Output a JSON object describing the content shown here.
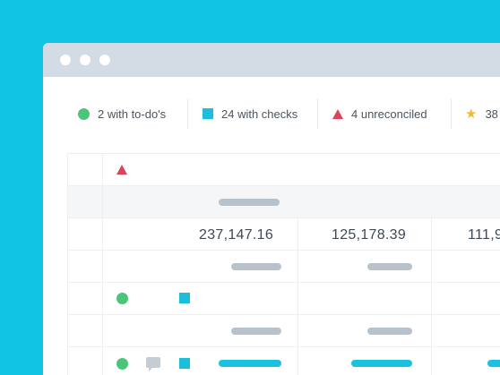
{
  "filters": [
    {
      "icon": "green-circle-icon",
      "label": "2 with to-do's"
    },
    {
      "icon": "cyan-square-icon",
      "label": "24 with checks"
    },
    {
      "icon": "red-triangle-icon",
      "label": "4 unreconciled"
    },
    {
      "icon": "star-icon",
      "label": "38"
    }
  ],
  "table": {
    "values": [
      "237,147.16",
      "125,178.39",
      "111,9"
    ]
  },
  "colors": {
    "background": "#12c4e4",
    "titlebar": "#d3dbe4",
    "green": "#4cc57a",
    "cyan": "#1bbfdc",
    "red": "#d9455a",
    "star": "#f6b926",
    "placeholder": "#b8c2cc"
  }
}
